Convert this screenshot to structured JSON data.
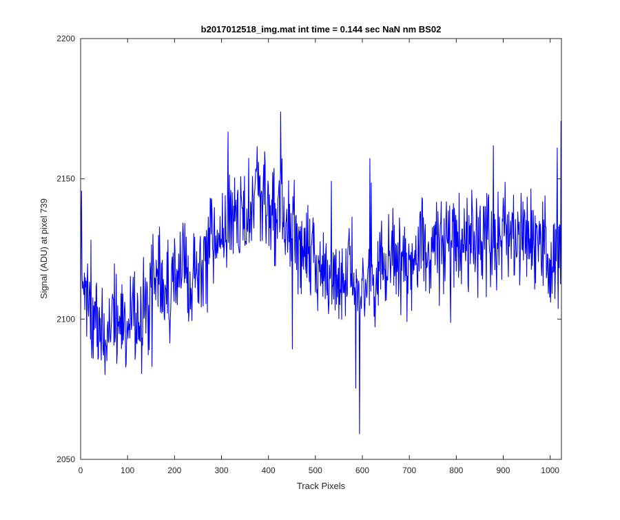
{
  "chart_data": {
    "type": "line",
    "title": "b2017012518_img.mat int time = 0.144 sec  NaN nm BS02",
    "xlabel": "Track Pixels",
    "ylabel": "Signal (ADU) at pixel 739",
    "xlim": [
      0,
      1024
    ],
    "ylim": [
      2050,
      2200
    ],
    "xticks": [
      0,
      100,
      200,
      300,
      400,
      500,
      600,
      700,
      800,
      900,
      1000
    ],
    "yticks": [
      2050,
      2100,
      2150,
      2200
    ],
    "grid": false,
    "legend": "none",
    "series": [
      {
        "color": "#0000ff",
        "x_step": 8,
        "x_start": 0,
        "values": [
          2115,
          2108,
          2112,
          2096,
          2104,
          2094,
          2100,
          2090,
          2102,
          2106,
          2091,
          2104,
          2100,
          2093,
          2108,
          2098,
          2104,
          2110,
          2106,
          2112,
          2108,
          2118,
          2105,
          2115,
          2109,
          2118,
          2115,
          2113,
          2120,
          2110,
          2118,
          2114,
          2116,
          2120,
          2123,
          2129,
          2125,
          2130,
          2133,
          2128,
          2135,
          2138,
          2134,
          2141,
          2137,
          2143,
          2139,
          2146,
          2142,
          2149,
          2135,
          2140,
          2136,
          2144,
          2139,
          2134,
          2138,
          2130,
          2128,
          2124,
          2127,
          2119,
          2126,
          2121,
          2117,
          2120,
          2114,
          2110,
          2116,
          2110,
          2118,
          2114,
          2122,
          2116,
          2106,
          2120,
          2112,
          2124,
          2114,
          2112,
          2126,
          2118,
          2122,
          2128,
          2118,
          2124,
          2120,
          2116,
          2122,
          2126,
          2120,
          2128,
          2123,
          2118,
          2127,
          2131,
          2125,
          2122,
          2130,
          2128,
          2133,
          2125,
          2129,
          2124,
          2132,
          2127,
          2131,
          2126,
          2134,
          2129,
          2125,
          2130,
          2128,
          2132,
          2127,
          2131,
          2125,
          2129,
          2133,
          2128,
          2130,
          2126,
          2132,
          2128,
          2130,
          2112,
          2128,
          2120
        ]
      }
    ]
  }
}
